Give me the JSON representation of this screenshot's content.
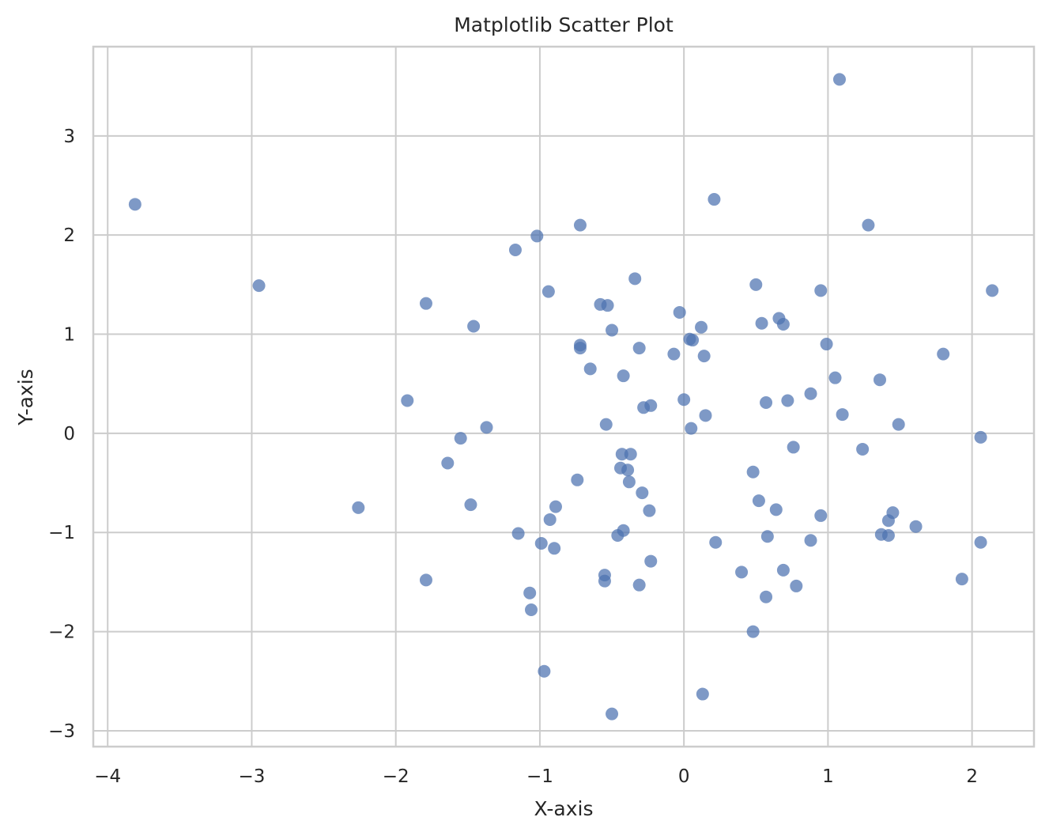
{
  "chart_data": {
    "type": "scatter",
    "title": "Matplotlib Scatter Plot",
    "xlabel": "X-axis",
    "ylabel": "Y-axis",
    "xlim": [
      -4.1,
      2.43
    ],
    "ylim": [
      -3.16,
      3.9
    ],
    "xticks": [
      -4,
      -3,
      -2,
      -1,
      0,
      1,
      2
    ],
    "xtick_labels": [
      "−4",
      "−3",
      "−2",
      "−1",
      "0",
      "1",
      "2"
    ],
    "yticks": [
      -3,
      -2,
      -1,
      0,
      1,
      2,
      3
    ],
    "ytick_labels": [
      "−3",
      "−2",
      "−1",
      "0",
      "1",
      "2",
      "3"
    ],
    "grid": true,
    "color": "#4c72b0",
    "points": [
      [
        -3.81,
        2.31
      ],
      [
        -2.95,
        1.49
      ],
      [
        -2.26,
        -0.75
      ],
      [
        -1.92,
        0.33
      ],
      [
        -1.79,
        1.31
      ],
      [
        -1.79,
        -1.48
      ],
      [
        -1.64,
        -0.3
      ],
      [
        -1.55,
        -0.05
      ],
      [
        -1.46,
        1.08
      ],
      [
        -1.48,
        -0.72
      ],
      [
        -1.37,
        0.06
      ],
      [
        -1.17,
        1.85
      ],
      [
        -1.15,
        -1.01
      ],
      [
        -1.07,
        -1.61
      ],
      [
        -1.06,
        -1.78
      ],
      [
        -1.02,
        1.99
      ],
      [
        -0.99,
        -1.11
      ],
      [
        -0.97,
        -2.4
      ],
      [
        -0.94,
        1.43
      ],
      [
        -0.93,
        -0.87
      ],
      [
        -0.9,
        -1.16
      ],
      [
        -0.89,
        -0.74
      ],
      [
        -0.74,
        -0.47
      ],
      [
        -0.72,
        2.1
      ],
      [
        -0.72,
        0.89
      ],
      [
        -0.72,
        0.86
      ],
      [
        -0.65,
        0.65
      ],
      [
        -0.58,
        1.3
      ],
      [
        -0.55,
        -1.43
      ],
      [
        -0.55,
        -1.49
      ],
      [
        -0.54,
        0.09
      ],
      [
        -0.53,
        1.29
      ],
      [
        -0.5,
        1.04
      ],
      [
        -0.5,
        -2.83
      ],
      [
        -0.46,
        -1.03
      ],
      [
        -0.43,
        -0.21
      ],
      [
        -0.44,
        -0.35
      ],
      [
        -0.42,
        0.58
      ],
      [
        -0.42,
        -0.98
      ],
      [
        -0.39,
        -0.37
      ],
      [
        -0.38,
        -0.49
      ],
      [
        -0.37,
        -0.21
      ],
      [
        -0.34,
        1.56
      ],
      [
        -0.31,
        0.86
      ],
      [
        -0.31,
        -1.53
      ],
      [
        -0.29,
        -0.6
      ],
      [
        -0.28,
        0.26
      ],
      [
        -0.24,
        -0.78
      ],
      [
        -0.23,
        0.28
      ],
      [
        -0.23,
        -1.29
      ],
      [
        -0.07,
        0.8
      ],
      [
        -0.03,
        1.22
      ],
      [
        0.0,
        0.34
      ],
      [
        0.04,
        0.95
      ],
      [
        0.06,
        0.94
      ],
      [
        0.05,
        0.05
      ],
      [
        0.12,
        1.07
      ],
      [
        0.13,
        -2.63
      ],
      [
        0.14,
        0.78
      ],
      [
        0.15,
        0.18
      ],
      [
        0.21,
        2.36
      ],
      [
        0.22,
        -1.1
      ],
      [
        0.4,
        -1.4
      ],
      [
        0.48,
        -2.0
      ],
      [
        0.48,
        -0.39
      ],
      [
        0.5,
        1.5
      ],
      [
        0.52,
        -0.68
      ],
      [
        0.54,
        1.11
      ],
      [
        0.57,
        0.31
      ],
      [
        0.57,
        -1.65
      ],
      [
        0.58,
        -1.04
      ],
      [
        0.64,
        -0.77
      ],
      [
        0.66,
        1.16
      ],
      [
        0.69,
        1.1
      ],
      [
        0.69,
        -1.38
      ],
      [
        0.72,
        0.33
      ],
      [
        0.76,
        -0.14
      ],
      [
        0.78,
        -1.54
      ],
      [
        0.88,
        0.4
      ],
      [
        0.88,
        -1.08
      ],
      [
        0.95,
        1.44
      ],
      [
        0.95,
        -0.83
      ],
      [
        0.99,
        0.9
      ],
      [
        1.05,
        0.56
      ],
      [
        1.08,
        3.57
      ],
      [
        1.1,
        0.19
      ],
      [
        1.24,
        -0.16
      ],
      [
        1.28,
        2.1
      ],
      [
        1.36,
        0.54
      ],
      [
        1.37,
        -1.02
      ],
      [
        1.42,
        -0.88
      ],
      [
        1.42,
        -1.03
      ],
      [
        1.45,
        -0.8
      ],
      [
        1.49,
        0.09
      ],
      [
        1.61,
        -0.94
      ],
      [
        1.8,
        0.8
      ],
      [
        1.93,
        -1.47
      ],
      [
        2.06,
        -0.04
      ],
      [
        2.06,
        -1.1
      ],
      [
        2.14,
        1.44
      ]
    ]
  }
}
